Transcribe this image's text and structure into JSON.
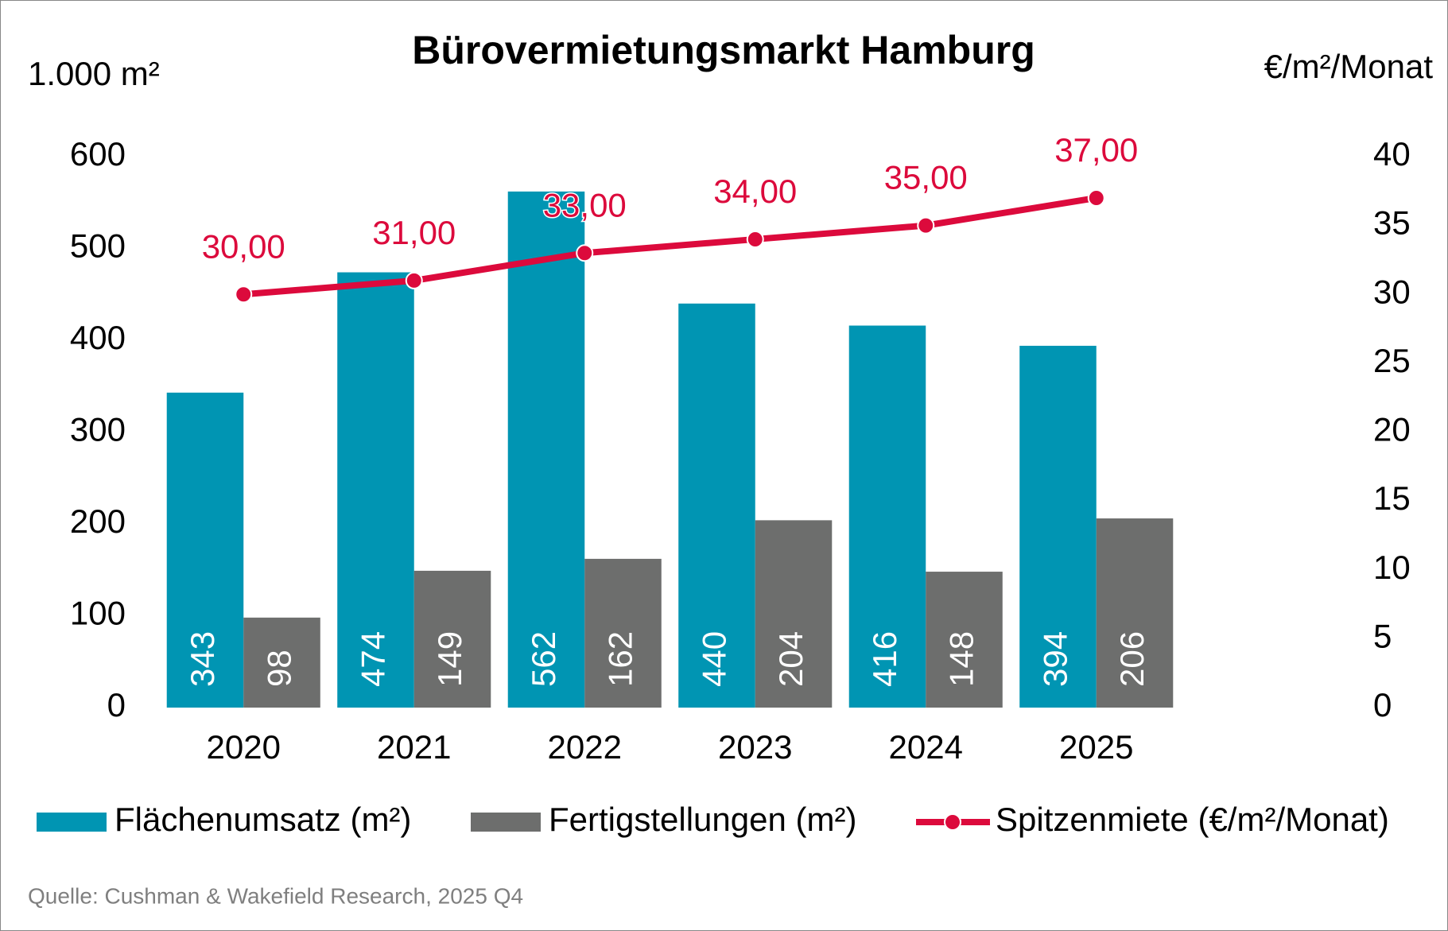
{
  "chart_data": {
    "type": "bar",
    "title": "Bürovermietungsmarkt Hamburg",
    "y_label": "1.000 m²",
    "y2_label": "€/m²/Monat",
    "categories": [
      "2020",
      "2021",
      "2022",
      "2023",
      "2024",
      "2025"
    ],
    "series": [
      {
        "name": "Flächenumsatz (m²)",
        "type": "bar",
        "color": "#0095b3",
        "values": [
          343,
          474,
          562,
          440,
          416,
          394
        ]
      },
      {
        "name": "Fertigstellungen (m²)",
        "type": "bar",
        "color": "#6d6e6d",
        "values": [
          98,
          149,
          162,
          204,
          148,
          206
        ]
      },
      {
        "name": "Spitzenmiete (€/m²/Monat)",
        "type": "line",
        "axis": "y2",
        "color": "#dc0a3c",
        "values": [
          30,
          31,
          33,
          34,
          35,
          37
        ],
        "value_labels": [
          "30,00",
          "31,00",
          "33,00",
          "34,00",
          "35,00",
          "37,00"
        ]
      }
    ],
    "ylim": [
      0,
      600
    ],
    "yticks": [
      0,
      100,
      200,
      300,
      400,
      500,
      600
    ],
    "y2lim": [
      0,
      40
    ],
    "y2ticks": [
      0,
      5,
      10,
      15,
      20,
      25,
      30,
      35,
      40
    ],
    "grid": false,
    "legend": "bottom",
    "source": "Quelle: Cushman & Wakefield Research, 2025 Q4"
  }
}
